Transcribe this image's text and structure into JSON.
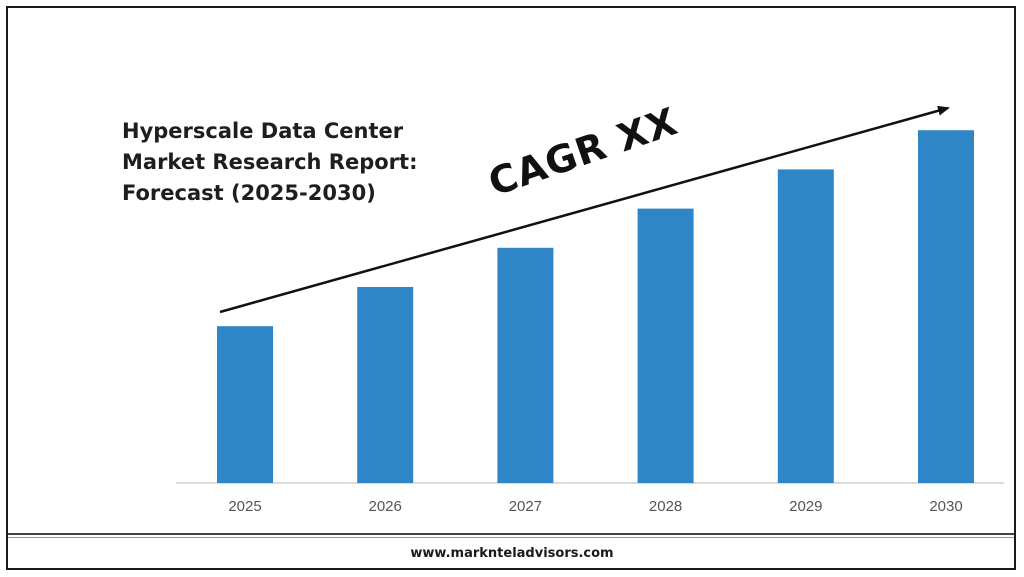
{
  "header": {
    "title_lines": [
      "Hyperscale Data Center",
      "Market Research Report:",
      "Forecast (2025-2030)"
    ]
  },
  "annotation": {
    "cagr_text": "CAGR XX"
  },
  "footer": {
    "url": "www.marknteladvisors.com"
  },
  "colors": {
    "bar": "#2e86c6",
    "axis": "#d0d0d0",
    "arrow": "#111111"
  },
  "chart_data": {
    "type": "bar",
    "title": "Hyperscale Data Center Market Research Report: Forecast (2025-2030)",
    "xlabel": "",
    "ylabel": "",
    "categories": [
      "2025",
      "2026",
      "2027",
      "2028",
      "2029",
      "2030"
    ],
    "values": [
      40,
      50,
      60,
      70,
      80,
      90
    ],
    "ylim": [
      0,
      100
    ],
    "grid": false,
    "legend": "none",
    "annotations": [
      "CAGR XX"
    ]
  }
}
